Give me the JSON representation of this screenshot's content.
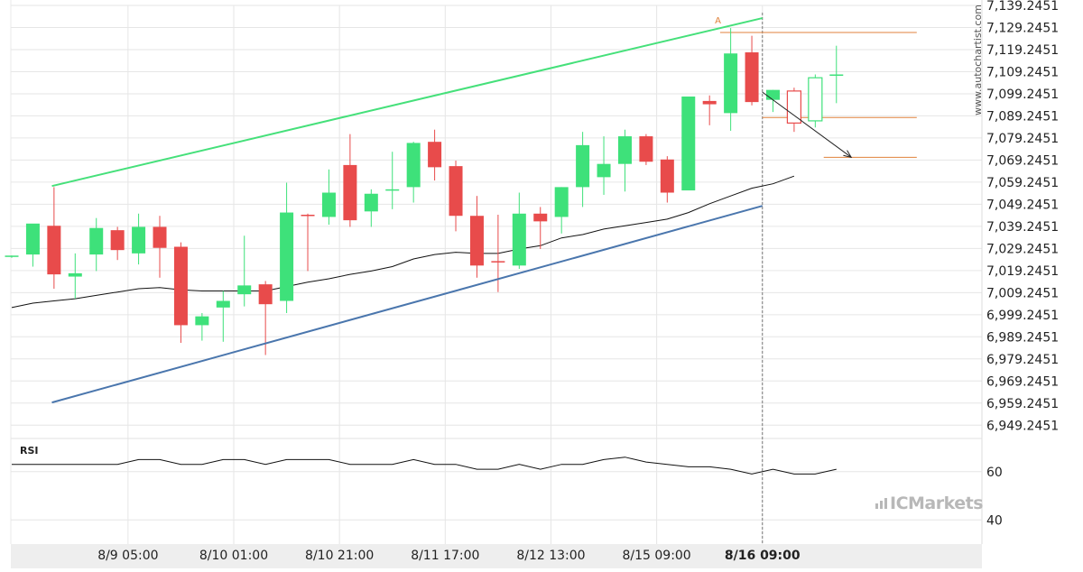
{
  "chart_data": {
    "type": "candlestick",
    "colors": {
      "bull": "#3ee17a",
      "bear": "#e84b4b",
      "upper_channel": "#45e07a",
      "lower_channel": "#4a76ad",
      "moving_average": "#111111",
      "level": "#e0823c",
      "projection": "#222222",
      "grid": "#e6e6e6",
      "axis_strip": "#eeeeee",
      "watermark": "#b8b8b8"
    },
    "price_axis": {
      "ticks": [
        "7,139.2451",
        "7,129.2451",
        "7,119.2451",
        "7,109.2451",
        "7,099.2451",
        "7,089.2451",
        "7,079.2451",
        "7,069.2451",
        "7,059.2451",
        "7,049.2451",
        "7,039.2451",
        "7,029.2451",
        "7,019.2451",
        "7,009.2451",
        "6,999.2451",
        "6,989.2451",
        "6,979.2451",
        "6,969.2451",
        "6,959.2451",
        "6,949.2451"
      ],
      "ylim": [
        6944.2451,
        7139.2451
      ]
    },
    "time_axis": {
      "labels": [
        {
          "text": "8/9 05:00",
          "index": 5.5,
          "bold": false
        },
        {
          "text": "8/10 01:00",
          "index": 10.5,
          "bold": false
        },
        {
          "text": "8/10 21:00",
          "index": 15.5,
          "bold": false
        },
        {
          "text": "8/11 17:00",
          "index": 20.5,
          "bold": false
        },
        {
          "text": "8/12 13:00",
          "index": 25.5,
          "bold": false
        },
        {
          "text": "8/15 09:00",
          "index": 30.5,
          "bold": false
        },
        {
          "text": "8/16 09:00",
          "index": 35.5,
          "bold": true
        }
      ]
    },
    "candles": [
      {
        "o": 7025.5,
        "h": 7026.0,
        "l": 7025.0,
        "c": 7026.0
      },
      {
        "o": 7026.5,
        "h": 7040.0,
        "l": 7021.0,
        "c": 7040.5
      },
      {
        "o": 7039.5,
        "h": 7057.0,
        "l": 7011.0,
        "c": 7017.5
      },
      {
        "o": 7016.5,
        "h": 7027.0,
        "l": 7006.5,
        "c": 7018.0
      },
      {
        "o": 7026.5,
        "h": 7043.0,
        "l": 7019.0,
        "c": 7038.5
      },
      {
        "o": 7037.5,
        "h": 7039.0,
        "l": 7024.0,
        "c": 7028.5
      },
      {
        "o": 7027.0,
        "h": 7045.0,
        "l": 7022.0,
        "c": 7039.0
      },
      {
        "o": 7039.0,
        "h": 7044.0,
        "l": 7016.0,
        "c": 7029.5
      },
      {
        "o": 7030.0,
        "h": 7032.0,
        "l": 6986.5,
        "c": 6994.5
      },
      {
        "o": 6994.5,
        "h": 7000.0,
        "l": 6987.5,
        "c": 6998.5
      },
      {
        "o": 7002.5,
        "h": 7010.0,
        "l": 6987.0,
        "c": 7005.5
      },
      {
        "o": 7008.5,
        "h": 7035.0,
        "l": 7003.0,
        "c": 7012.5
      },
      {
        "o": 7013.0,
        "h": 7014.5,
        "l": 6981.0,
        "c": 7004.0
      },
      {
        "o": 7005.5,
        "h": 7059.0,
        "l": 7000.0,
        "c": 7045.5
      },
      {
        "o": 7044.5,
        "h": 7045.0,
        "l": 7019.0,
        "c": 7044.0
      },
      {
        "o": 7043.5,
        "h": 7065.0,
        "l": 7040.0,
        "c": 7054.5
      },
      {
        "o": 7067.0,
        "h": 7081.0,
        "l": 7039.0,
        "c": 7042.0
      },
      {
        "o": 7046.0,
        "h": 7056.0,
        "l": 7039.0,
        "c": 7054.0
      },
      {
        "o": 7055.5,
        "h": 7073.0,
        "l": 7047.0,
        "c": 7056.0
      },
      {
        "o": 7057.0,
        "h": 7077.5,
        "l": 7050.0,
        "c": 7077.0
      },
      {
        "o": 7077.5,
        "h": 7083.0,
        "l": 7060.0,
        "c": 7066.0
      },
      {
        "o": 7066.5,
        "h": 7069.0,
        "l": 7037.0,
        "c": 7044.0
      },
      {
        "o": 7044.0,
        "h": 7053.0,
        "l": 7016.0,
        "c": 7021.5
      },
      {
        "o": 7023.5,
        "h": 7044.5,
        "l": 7009.5,
        "c": 7023.0
      },
      {
        "o": 7021.5,
        "h": 7054.5,
        "l": 7020.0,
        "c": 7045.0
      },
      {
        "o": 7045.0,
        "h": 7048.0,
        "l": 7029.0,
        "c": 7041.5
      },
      {
        "o": 7043.5,
        "h": 7057.0,
        "l": 7036.0,
        "c": 7057.0
      },
      {
        "o": 7057.0,
        "h": 7082.0,
        "l": 7048.0,
        "c": 7076.0
      },
      {
        "o": 7061.5,
        "h": 7080.0,
        "l": 7053.5,
        "c": 7067.5
      },
      {
        "o": 7067.5,
        "h": 7083.0,
        "l": 7055.0,
        "c": 7080.0
      },
      {
        "o": 7080.0,
        "h": 7081.0,
        "l": 7067.0,
        "c": 7068.5
      },
      {
        "o": 7069.5,
        "h": 7071.0,
        "l": 7050.0,
        "c": 7054.5
      },
      {
        "o": 7055.5,
        "h": 7098.0,
        "l": 7056.0,
        "c": 7098.0
      },
      {
        "o": 7096.0,
        "h": 7098.5,
        "l": 7085.0,
        "c": 7094.5
      },
      {
        "o": 7090.5,
        "h": 7129.0,
        "l": 7082.5,
        "c": 7117.5
      },
      {
        "o": 7118.0,
        "h": 7125.5,
        "l": 7094.0,
        "c": 7095.5
      },
      {
        "o": 7096.5,
        "h": 7101.0,
        "l": 7091.0,
        "c": 7101.0
      },
      {
        "o": 7100.5,
        "h": 7102.0,
        "l": 7082.0,
        "c": 7086.0
      },
      {
        "o": 7087.0,
        "h": 7108.0,
        "l": 7084.0,
        "c": 7106.5
      },
      {
        "o": 7108.0,
        "h": 7121.0,
        "l": 7095.0,
        "c": 7108.0
      }
    ],
    "moving_average": [
      {
        "i": 0,
        "v": 7002.5
      },
      {
        "i": 1,
        "v": 7004.5
      },
      {
        "i": 2,
        "v": 7005.5
      },
      {
        "i": 3,
        "v": 7006.5
      },
      {
        "i": 4,
        "v": 7008.0
      },
      {
        "i": 5,
        "v": 7009.5
      },
      {
        "i": 6,
        "v": 7011.0
      },
      {
        "i": 7,
        "v": 7011.5
      },
      {
        "i": 8,
        "v": 7010.5
      },
      {
        "i": 9,
        "v": 7010.0
      },
      {
        "i": 10,
        "v": 7010.0
      },
      {
        "i": 11,
        "v": 7010.0
      },
      {
        "i": 12,
        "v": 7010.0
      },
      {
        "i": 13,
        "v": 7012.0
      },
      {
        "i": 14,
        "v": 7014.0
      },
      {
        "i": 15,
        "v": 7015.5
      },
      {
        "i": 16,
        "v": 7017.5
      },
      {
        "i": 17,
        "v": 7019.0
      },
      {
        "i": 18,
        "v": 7021.0
      },
      {
        "i": 19,
        "v": 7024.5
      },
      {
        "i": 20,
        "v": 7026.5
      },
      {
        "i": 21,
        "v": 7027.5
      },
      {
        "i": 22,
        "v": 7027.0
      },
      {
        "i": 23,
        "v": 7027.0
      },
      {
        "i": 24,
        "v": 7029.0
      },
      {
        "i": 25,
        "v": 7030.5
      },
      {
        "i": 26,
        "v": 7034.0
      },
      {
        "i": 27,
        "v": 7035.5
      },
      {
        "i": 28,
        "v": 7038.0
      },
      {
        "i": 29,
        "v": 7039.5
      },
      {
        "i": 30,
        "v": 7041.0
      },
      {
        "i": 31,
        "v": 7042.5
      },
      {
        "i": 32,
        "v": 7045.5
      },
      {
        "i": 33,
        "v": 7049.5
      },
      {
        "i": 34,
        "v": 7053.0
      },
      {
        "i": 35,
        "v": 7056.5
      },
      {
        "i": 36,
        "v": 7058.5
      },
      {
        "i": 37,
        "v": 7062.0
      }
    ],
    "upper_channel": [
      {
        "i": 1.9,
        "v": 7057.5
      },
      {
        "i": 35.5,
        "v": 7133.5
      }
    ],
    "lower_channel": [
      {
        "i": 1.9,
        "v": 6959.5
      },
      {
        "i": 35.5,
        "v": 7048.5
      }
    ],
    "resistance_level": {
      "value": 7127.0,
      "from_index": 33.5,
      "to_index": 42.8
    },
    "support_level": {
      "value": 7088.5,
      "from_index": 35.5,
      "to_index": 42.8
    },
    "target_level": {
      "value": 7070.5,
      "from_index": 38.4,
      "to_index": 42.8
    },
    "projection": {
      "from": {
        "i": 35.5,
        "v": 7100.0
      },
      "to": {
        "i": 39.7,
        "v": 7070.5
      }
    },
    "marker": {
      "text": "A",
      "index": 33.4,
      "value": 7131.0
    },
    "vertical_marker_index": 35.5,
    "rsi": {
      "label": "RSI",
      "ticks": [
        "60",
        "40"
      ],
      "ylim": [
        30,
        73
      ],
      "values": [
        63,
        63,
        63,
        63,
        63,
        63,
        65,
        65,
        63,
        63,
        65,
        65,
        63,
        65,
        65,
        65,
        63,
        63,
        63,
        65,
        63,
        63,
        61,
        61,
        63,
        61,
        63,
        63,
        65,
        66,
        64,
        63,
        62,
        62,
        61,
        59,
        61,
        59,
        59,
        61
      ]
    }
  },
  "watermark": {
    "vertical_text": "www.autochartist.com",
    "brand": "ICMarkets"
  }
}
